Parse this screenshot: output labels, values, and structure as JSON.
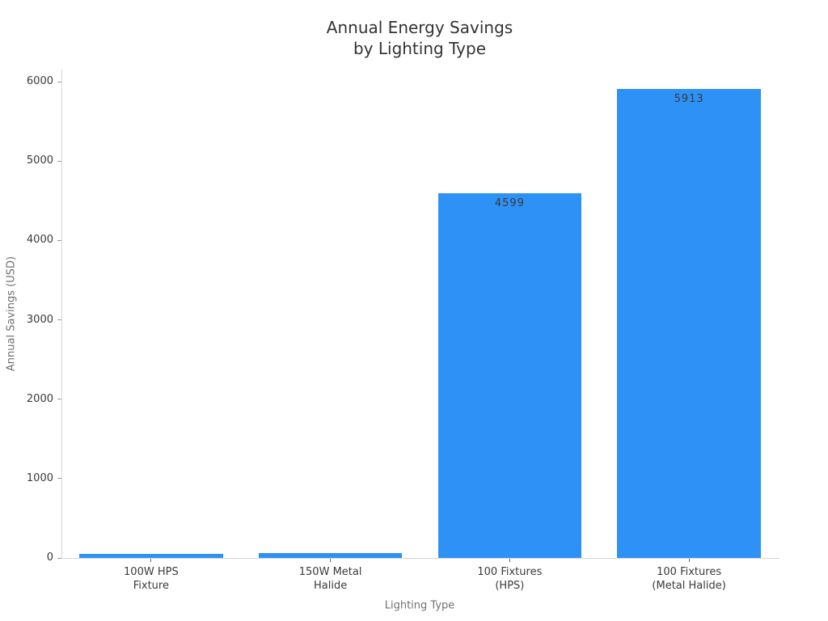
{
  "figure": {
    "title_line1": "Annual Energy Savings",
    "title_line2": "by Lighting Type"
  },
  "chart_data": {
    "type": "bar",
    "title": "Annual Energy Savings by Lighting Type",
    "xlabel": "Lighting Type",
    "ylabel": "Annual Savings (USD)",
    "ylim": [
      0,
      6000
    ],
    "y_ticks": [
      0,
      1000,
      2000,
      3000,
      4000,
      5000,
      6000
    ],
    "grid": false,
    "legend": false,
    "bar_color": "#2e91f5",
    "tick_text_color": "#3a3a3a",
    "axis_title_color": "#707070",
    "spine_color": "#d6d6d6",
    "categories": [
      "100W HPS Fixture",
      "150W Metal Halide",
      "100 Fixtures (HPS)",
      "100 Fixtures (Metal Halide)"
    ],
    "category_lines": [
      [
        "100W HPS",
        "Fixture"
      ],
      [
        "150W Metal",
        "Halide"
      ],
      [
        "100 Fixtures",
        "(HPS)"
      ],
      [
        "100 Fixtures",
        "(Metal Halide)"
      ]
    ],
    "values": [
      46,
      59,
      4599,
      5913
    ],
    "bar_value_labels": [
      null,
      null,
      "4599",
      "5913"
    ]
  }
}
